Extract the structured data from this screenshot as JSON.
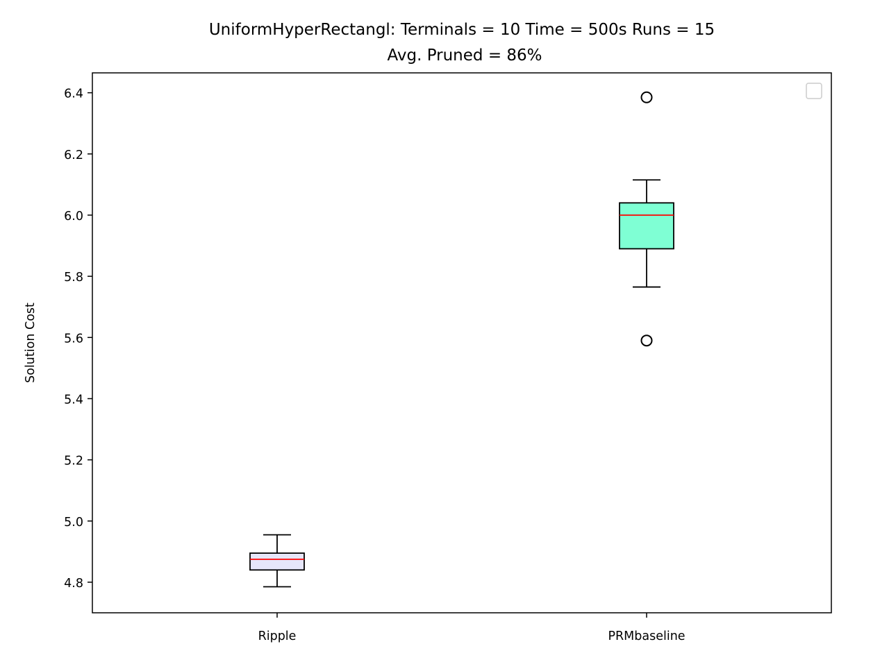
{
  "chart_data": {
    "type": "box",
    "title": "UniformHyperRectangl:  Terminals = 10  Time = 500s  Runs = 15",
    "subtitle": "Avg. Pruned = 86%",
    "xlabel": "",
    "ylabel": "Solution Cost",
    "ylim": [
      4.7,
      6.465
    ],
    "yticks": [
      4.8,
      5.0,
      5.2,
      5.4,
      5.6,
      5.8,
      6.0,
      6.2,
      6.4
    ],
    "ytick_labels": [
      "4.8",
      "5.0",
      "5.2",
      "5.4",
      "5.6",
      "5.8",
      "6.0",
      "6.2",
      "6.4"
    ],
    "grid": false,
    "legend": {
      "placement": "top-right",
      "entries": []
    },
    "categories": [
      "Ripple",
      "PRMbaseline"
    ],
    "boxes": [
      {
        "category": "Ripple",
        "whisker_low": 4.785,
        "q1": 4.84,
        "median": 4.875,
        "q3": 4.895,
        "whisker_high": 4.955,
        "outliers": [],
        "fill": "#e6e6fa"
      },
      {
        "category": "PRMbaseline",
        "whisker_low": 5.765,
        "q1": 5.89,
        "median": 6.0,
        "q3": 6.04,
        "whisker_high": 6.115,
        "outliers": [
          5.59,
          6.385
        ],
        "fill": "#7fffd4"
      }
    ],
    "colors": {
      "median": "#ff0000",
      "box_edge": "#000000",
      "whisker": "#000000",
      "outlier_edge": "#000000"
    }
  }
}
